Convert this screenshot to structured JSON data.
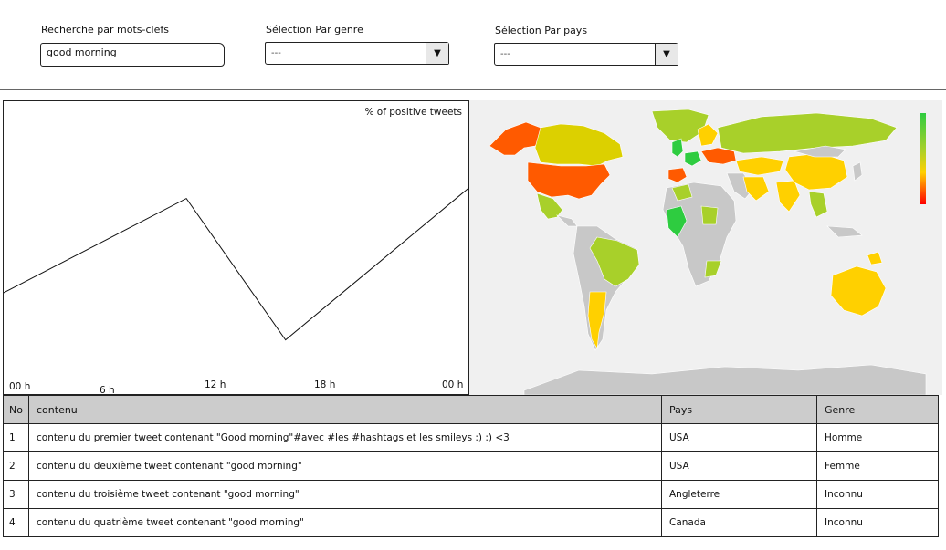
{
  "filters": {
    "keyword": {
      "label": "Recherche par mots-clefs",
      "value": "good morning"
    },
    "genre": {
      "label": "Sélection Par genre",
      "value": "---"
    },
    "pays": {
      "label": "Sélection Par pays",
      "value": "---"
    }
  },
  "icons": {
    "dropdown": "triangle-down-icon"
  },
  "colors": {
    "table_header": "#cccccc",
    "map_scale_top": "#2ecc40",
    "map_scale_bottom": "#ff0000",
    "map_no_data": "#c8c8c8"
  },
  "chart_data": {
    "type": "line",
    "title": "% of positive tweets",
    "xlabel": "",
    "ylabel": "",
    "x_ticks": [
      "00 h",
      "6 h",
      "12 h",
      "18 h",
      "00 h"
    ],
    "x": [
      0,
      9.4,
      14.5,
      24
    ],
    "values": [
      35,
      67,
      19,
      71
    ],
    "xlim": [
      0,
      24
    ],
    "ylim": [
      0,
      100
    ],
    "grid": false,
    "y_ticks_shown": false
  },
  "map": {
    "type": "choropleth",
    "scale": [
      "#2ecc40",
      "#a8d02a",
      "#ffd000",
      "#ff5a00",
      "#ff0000"
    ],
    "countries": [
      {
        "name": "USA",
        "color": "#ff5a00"
      },
      {
        "name": "Canada",
        "color": "#dcd000"
      },
      {
        "name": "Alaska",
        "color": "#ff5a00"
      },
      {
        "name": "Greenland",
        "color": "#a8d02a"
      },
      {
        "name": "Mexico",
        "color": "#a8d02a"
      },
      {
        "name": "Brazil",
        "color": "#a8d02a"
      },
      {
        "name": "Argentina",
        "color": "#ffd000"
      },
      {
        "name": "Spain",
        "color": "#ff5a00"
      },
      {
        "name": "United Kingdom",
        "color": "#2ecc40"
      },
      {
        "name": "Russia",
        "color": "#a8d02a"
      },
      {
        "name": "China",
        "color": "#ffd000"
      },
      {
        "name": "India",
        "color": "#ffd000"
      },
      {
        "name": "Australia",
        "color": "#ffd000"
      },
      {
        "name": "West Africa",
        "color": "#2ecc40"
      },
      {
        "name": "Eastern Europe",
        "color": "#ff5a00"
      }
    ]
  },
  "table": {
    "headers": {
      "no": "No",
      "contenu": "contenu",
      "pays": "Pays",
      "genre": "Genre"
    },
    "rows": [
      {
        "no": "1",
        "contenu": "contenu du premier tweet contenant \"Good morning\"#avec #les #hashtags et les smileys :) :) <3",
        "pays": "USA",
        "genre": "Homme"
      },
      {
        "no": "2",
        "contenu": "contenu du deuxième tweet contenant \"good morning\"",
        "pays": "USA",
        "genre": "Femme"
      },
      {
        "no": "3",
        "contenu": "contenu du troisième tweet contenant \"good morning\"",
        "pays": "Angleterre",
        "genre": "Inconnu"
      },
      {
        "no": "4",
        "contenu": "contenu du quatrième tweet contenant \"good morning\"",
        "pays": "Canada",
        "genre": "Inconnu"
      }
    ]
  }
}
